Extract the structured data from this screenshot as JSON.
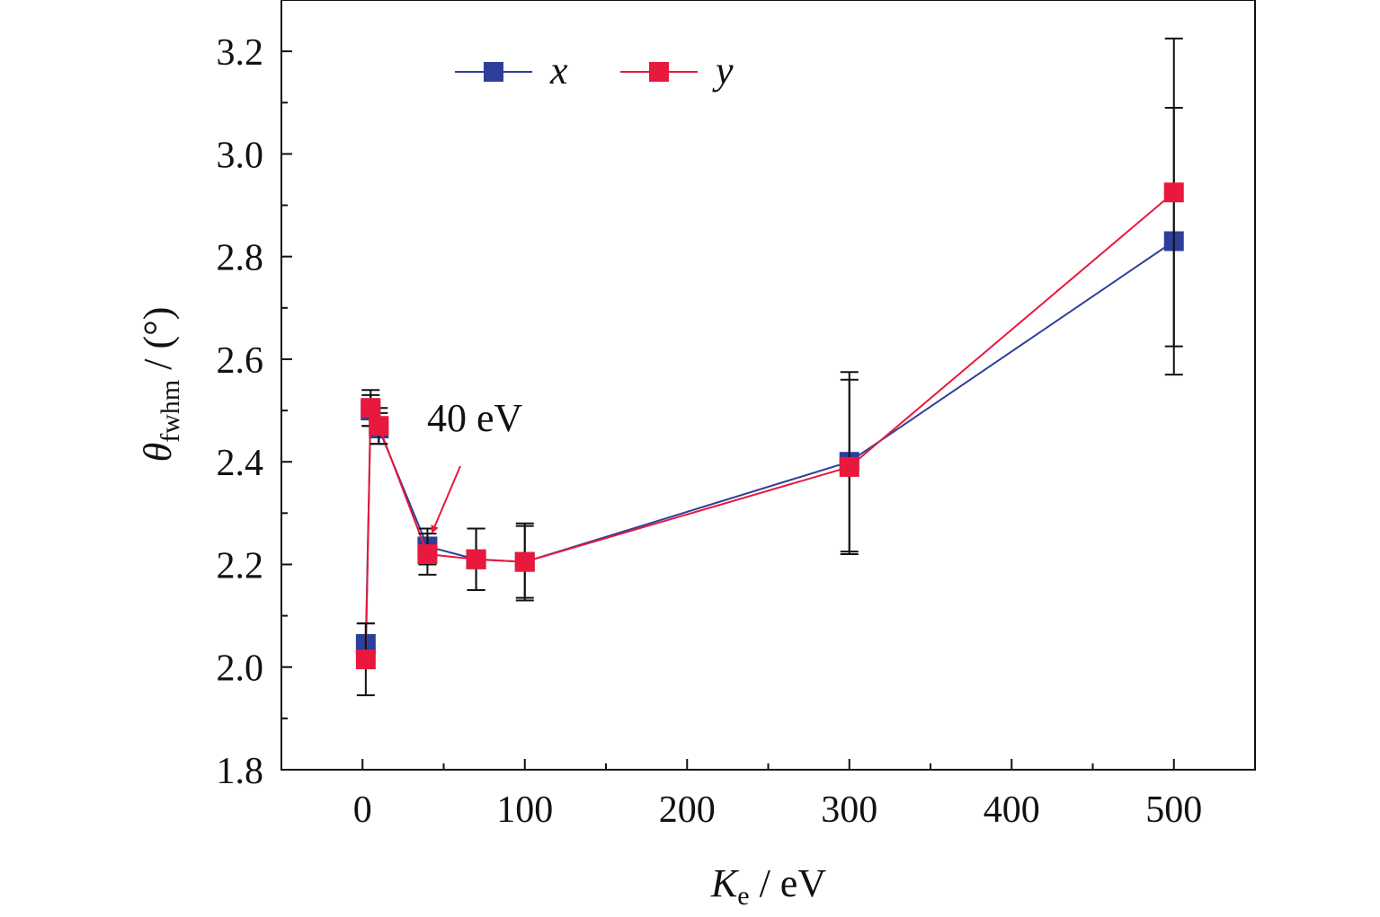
{
  "chart_data": {
    "type": "scatter",
    "title": "",
    "xlabel": {
      "main": "K",
      "sub": "e",
      "unit": " / eV"
    },
    "ylabel": {
      "main": "θ",
      "sub": "fwhm",
      "unit": " / (°)"
    },
    "xlim": [
      -50,
      550
    ],
    "ylim": [
      1.8,
      3.3
    ],
    "x_ticks": [
      0,
      100,
      200,
      300,
      400,
      500
    ],
    "x_tick_labels": [
      "0",
      "100",
      "200",
      "300",
      "400",
      "500"
    ],
    "y_ticks": [
      1.8,
      2.0,
      2.2,
      2.4,
      2.6,
      2.8,
      3.0,
      3.2
    ],
    "y_tick_labels": [
      "1.8",
      "2.0",
      "2.2",
      "2.4",
      "2.6",
      "2.8",
      "3.0",
      "3.2"
    ],
    "grid": false,
    "legend_position": "top-left",
    "series": [
      {
        "name": "x",
        "color": "#2e3f99",
        "points": [
          {
            "x": 2,
            "y": 2.045,
            "err": 0.04
          },
          {
            "x": 5,
            "y": 2.5,
            "err": 0.03
          },
          {
            "x": 10,
            "y": 2.465,
            "err": 0.03
          },
          {
            "x": 40,
            "y": 2.235,
            "err": 0.035
          },
          {
            "x": 70,
            "y": 2.21,
            "err": 0.06
          },
          {
            "x": 100,
            "y": 2.205,
            "err": 0.07
          },
          {
            "x": 300,
            "y": 2.4,
            "err": 0.175
          },
          {
            "x": 500,
            "y": 2.83,
            "err": 0.26
          }
        ]
      },
      {
        "name": "y",
        "color": "#e8193c",
        "points": [
          {
            "x": 2,
            "y": 2.015,
            "err": 0.07
          },
          {
            "x": 5,
            "y": 2.505,
            "err": 0.035
          },
          {
            "x": 10,
            "y": 2.47,
            "err": 0.035
          },
          {
            "x": 40,
            "y": 2.22,
            "err": 0.04
          },
          {
            "x": 70,
            "y": 2.21,
            "err": 0.06
          },
          {
            "x": 100,
            "y": 2.205,
            "err": 0.075
          },
          {
            "x": 300,
            "y": 2.39,
            "err": 0.17
          },
          {
            "x": 500,
            "y": 2.925,
            "err": 0.3
          }
        ]
      }
    ],
    "annotations": [
      {
        "text": "40 eV",
        "points_to": {
          "x": 40,
          "y": 2.265
        },
        "arrow_color": "#e8193c"
      }
    ]
  }
}
